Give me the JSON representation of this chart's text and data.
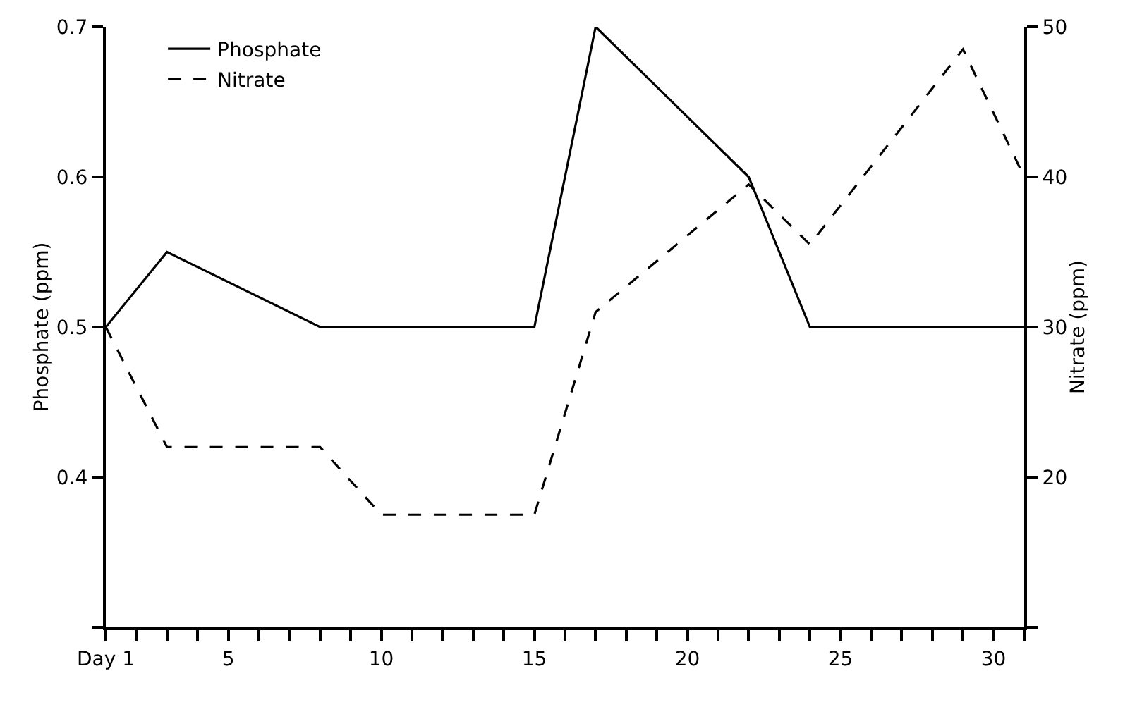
{
  "chart_data": {
    "type": "line",
    "xlabel": null,
    "ylabel": "Phosphate (ppm)",
    "y2label": "Nitrate (ppm)",
    "series": [
      {
        "name": "Phosphate",
        "color": "#000000",
        "line_style": "solid",
        "x": [
          1,
          3,
          8,
          15,
          17,
          22,
          24,
          31
        ],
        "values": [
          0.5,
          0.55,
          0.5,
          0.5,
          0.7,
          0.6,
          0.5,
          0.5
        ]
      },
      {
        "name": "Nitrate",
        "color": "#000000",
        "line_style": "dashed",
        "axis": "y2",
        "x": [
          1,
          3,
          8,
          10,
          15,
          17,
          22,
          24,
          29,
          31
        ],
        "values": [
          30,
          22,
          22,
          17.5,
          17.5,
          31,
          39.5,
          35.5,
          48.5,
          40
        ]
      }
    ],
    "xlim": [
      1,
      31
    ],
    "xticks": [
      {
        "value": 1,
        "label": "Day 1"
      },
      {
        "value": 2,
        "label": null
      },
      {
        "value": 3,
        "label": null
      },
      {
        "value": 4,
        "label": null
      },
      5,
      {
        "value": 6,
        "label": null
      },
      {
        "value": 7,
        "label": null
      },
      {
        "value": 8,
        "label": null
      },
      {
        "value": 9,
        "label": null
      },
      10,
      {
        "value": 11,
        "label": null
      },
      {
        "value": 12,
        "label": null
      },
      {
        "value": 13,
        "label": null
      },
      {
        "value": 14,
        "label": null
      },
      15,
      {
        "value": 16,
        "label": null
      },
      {
        "value": 17,
        "label": null
      },
      {
        "value": 18,
        "label": null
      },
      {
        "value": 19,
        "label": null
      },
      20,
      {
        "value": 21,
        "label": null
      },
      {
        "value": 22,
        "label": null
      },
      {
        "value": 23,
        "label": null
      },
      {
        "value": 24,
        "label": null
      },
      25,
      {
        "value": 26,
        "label": null
      },
      {
        "value": 27,
        "label": null
      },
      {
        "value": 28,
        "label": null
      },
      {
        "value": 29,
        "label": null
      },
      30,
      {
        "value": 31,
        "label": null
      }
    ],
    "ylim": [
      0.3,
      0.7
    ],
    "yticks": [
      {
        "value": 0.3,
        "label": null
      },
      0.4,
      0.5,
      0.6,
      0.7
    ],
    "y2lim": [
      10,
      50
    ],
    "y2ticks": [
      {
        "value": 10,
        "label": null
      },
      20,
      30,
      40,
      50
    ],
    "legend": "top left",
    "marker": "none"
  }
}
